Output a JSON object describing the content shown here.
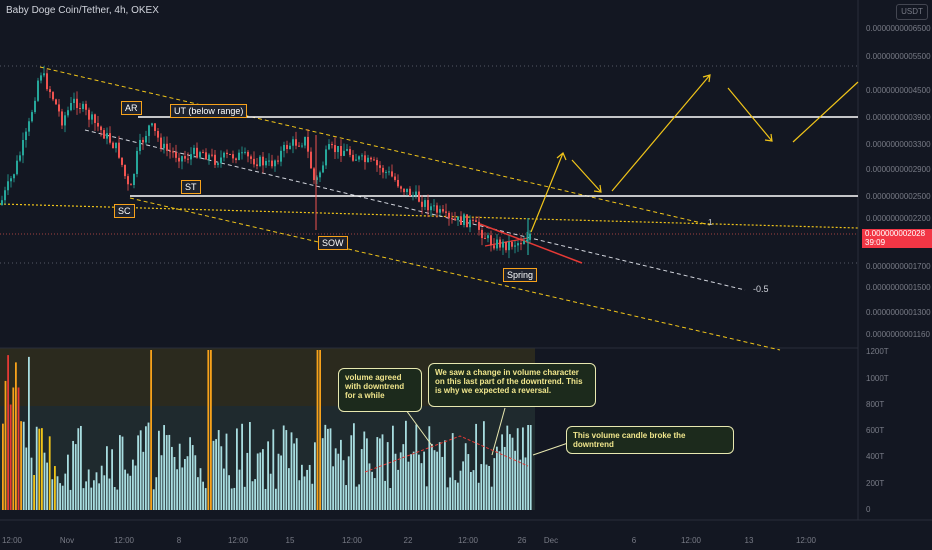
{
  "header": {
    "symbol_line": "Baby Doge Coin/Tether, 4h, OKEX",
    "currency": "USDT"
  },
  "price_tag": {
    "price": "0.000000002028",
    "countdown": "39:09"
  },
  "price_axis_labels": [
    "0.0000000006500",
    "0.0000000005500",
    "0.0000000004500",
    "0.0000000003900",
    "0.0000000003300",
    "0.0000000002900",
    "0.0000000002500",
    "0.0000000002200",
    "0.0000000001700",
    "0.0000000001500",
    "0.0000000001300",
    "0.0000000001160"
  ],
  "volume_axis_labels": [
    "1200T",
    "1000T",
    "800T",
    "600T",
    "400T",
    "200T",
    "0"
  ],
  "time_axis_labels": [
    "12:00",
    "Nov",
    "12:00",
    "8",
    "12:00",
    "15",
    "12:00",
    "22",
    "12:00",
    "26",
    "Dec",
    "6",
    "12:00",
    "13",
    "12:00"
  ],
  "annotations": {
    "ar": "AR",
    "ut": "UT (below range)",
    "st": "ST",
    "sc": "SC",
    "sow": "SOW",
    "spring": "Spring",
    "fib": "-0.5",
    "fib_one": "1"
  },
  "notes": {
    "volume_downtrend": "volume agreed with downtrend for a while",
    "volume_change": "We saw a change in volume character on this last part of the downtrend. This is why we expected a reversal.",
    "volume_break": "This volume candle broke the downtrend"
  },
  "colors": {
    "background": "#131722",
    "up_candle": "#26a69a",
    "down_candle": "#ef5350",
    "volume_bar": "#a8dde0",
    "volume_high_orange": "#f7a21b",
    "volume_red": "#e53935",
    "guide_yellow": "#f0c419",
    "level_white": "#ffffff",
    "price_red": "#f23645"
  },
  "chart_data": {
    "type": "candlestick",
    "title": "Baby Doge Coin/Tether, 4h, OKEX",
    "approx_close_path": [
      {
        "x": "Oct 28",
        "close": 2.6e-09
      },
      {
        "x": "Oct 30",
        "close": 4e-09
      },
      {
        "x": "Oct 31",
        "close": 5.3e-09
      },
      {
        "x": "Nov 1",
        "close": 4.3e-09
      },
      {
        "x": "Nov 3",
        "close": 3.6e-09
      },
      {
        "x": "Nov 4",
        "close": 2.6e-09
      },
      {
        "x": "Nov 6",
        "close": 3.3e-09
      },
      {
        "x": "Nov 8",
        "close": 3.1e-09
      },
      {
        "x": "Nov 10",
        "close": 3e-09
      },
      {
        "x": "Nov 13",
        "close": 3.1e-09
      },
      {
        "x": "Nov 15",
        "close": 3.5e-09
      },
      {
        "x": "Nov 16",
        "close": 2.3e-09
      },
      {
        "x": "Nov 18",
        "close": 3.3e-09
      },
      {
        "x": "Nov 20",
        "close": 2.9e-09
      },
      {
        "x": "Nov 22",
        "close": 2.35e-09
      },
      {
        "x": "Nov 24",
        "close": 2.15e-09
      },
      {
        "x": "Nov 26",
        "close": 1.9e-09
      },
      {
        "x": "Nov 28",
        "close": 1.85e-09
      },
      {
        "x": "Nov 29",
        "close": 2.028e-09
      }
    ],
    "levels": {
      "ar_ut": 3.9e-09,
      "st": 2.5e-09,
      "current": 2.028e-09
    },
    "volume_axis": {
      "unit": "T",
      "ylim": [
        0,
        1200
      ]
    }
  }
}
